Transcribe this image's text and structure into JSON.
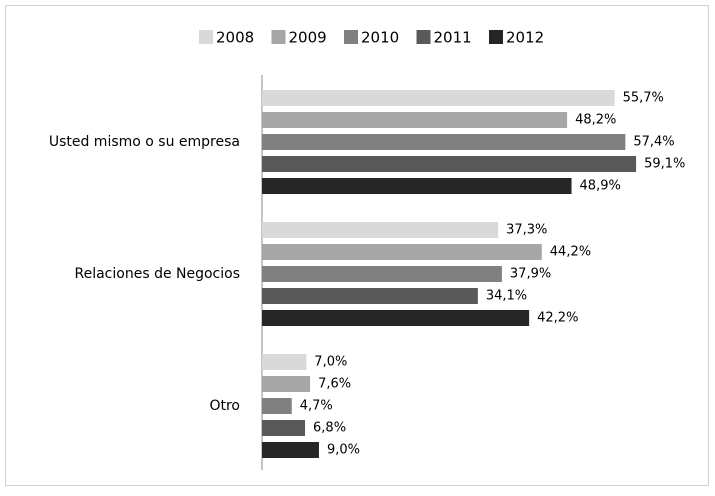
{
  "chart_data": {
    "type": "hbar",
    "categories": [
      "Usted mismo  o su empresa",
      "Relaciones de Negocios",
      "Otro"
    ],
    "series": [
      {
        "name": "2008",
        "color": "#d9d9d9",
        "values": [
          55.7,
          37.3,
          7.0
        ],
        "value_labels": [
          "55,7%",
          "37,3%",
          "7,0%"
        ]
      },
      {
        "name": "2009",
        "color": "#a6a6a6",
        "values": [
          48.2,
          44.2,
          7.6
        ],
        "value_labels": [
          "48,2%",
          "44,2%",
          "7,6%"
        ]
      },
      {
        "name": "2010",
        "color": "#808080",
        "values": [
          57.4,
          37.9,
          4.7
        ],
        "value_labels": [
          "57,4%",
          "37,9%",
          "4,7%"
        ]
      },
      {
        "name": "2011",
        "color": "#595959",
        "values": [
          59.1,
          34.1,
          6.8
        ],
        "value_labels": [
          "59,1%",
          "34,1%",
          "6,8%"
        ]
      },
      {
        "name": "2012",
        "color": "#262626",
        "values": [
          48.9,
          42.2,
          9.0
        ],
        "value_labels": [
          "48,9%",
          "42,2%",
          "9,0%"
        ]
      }
    ],
    "legend": "top"
  }
}
